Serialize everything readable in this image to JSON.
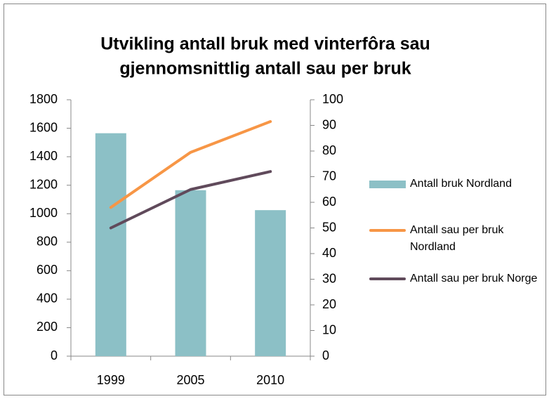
{
  "chart_data": {
    "type": "bar-line",
    "title": [
      "Utvikling antall bruk med vinterfôra sau",
      "gjennomsnittlig antall sau per bruk"
    ],
    "categories": [
      "1999",
      "2005",
      "2010"
    ],
    "series": [
      {
        "name": "Antall bruk Nordland",
        "type": "bar",
        "color": "#8cc0c6",
        "values": [
          1565,
          1165,
          1025
        ]
      },
      {
        "name": "Antall sau per bruk Nordland",
        "type": "line",
        "axis": "y2",
        "color": "#f79646",
        "values": [
          58,
          79.5,
          91.5
        ]
      },
      {
        "name": "Antall sau per bruk Norge",
        "type": "line",
        "axis": "y2",
        "color": "#604a5b",
        "values": [
          50,
          65,
          72
        ]
      }
    ],
    "ylim": [
      0,
      1800
    ],
    "yticks": [
      0,
      200,
      400,
      600,
      800,
      1000,
      1200,
      1400,
      1600,
      1800
    ],
    "y2lim": [
      0,
      100
    ],
    "y2ticks": [
      0,
      10,
      20,
      30,
      40,
      50,
      60,
      70,
      80,
      90,
      100
    ],
    "legend": "right"
  }
}
